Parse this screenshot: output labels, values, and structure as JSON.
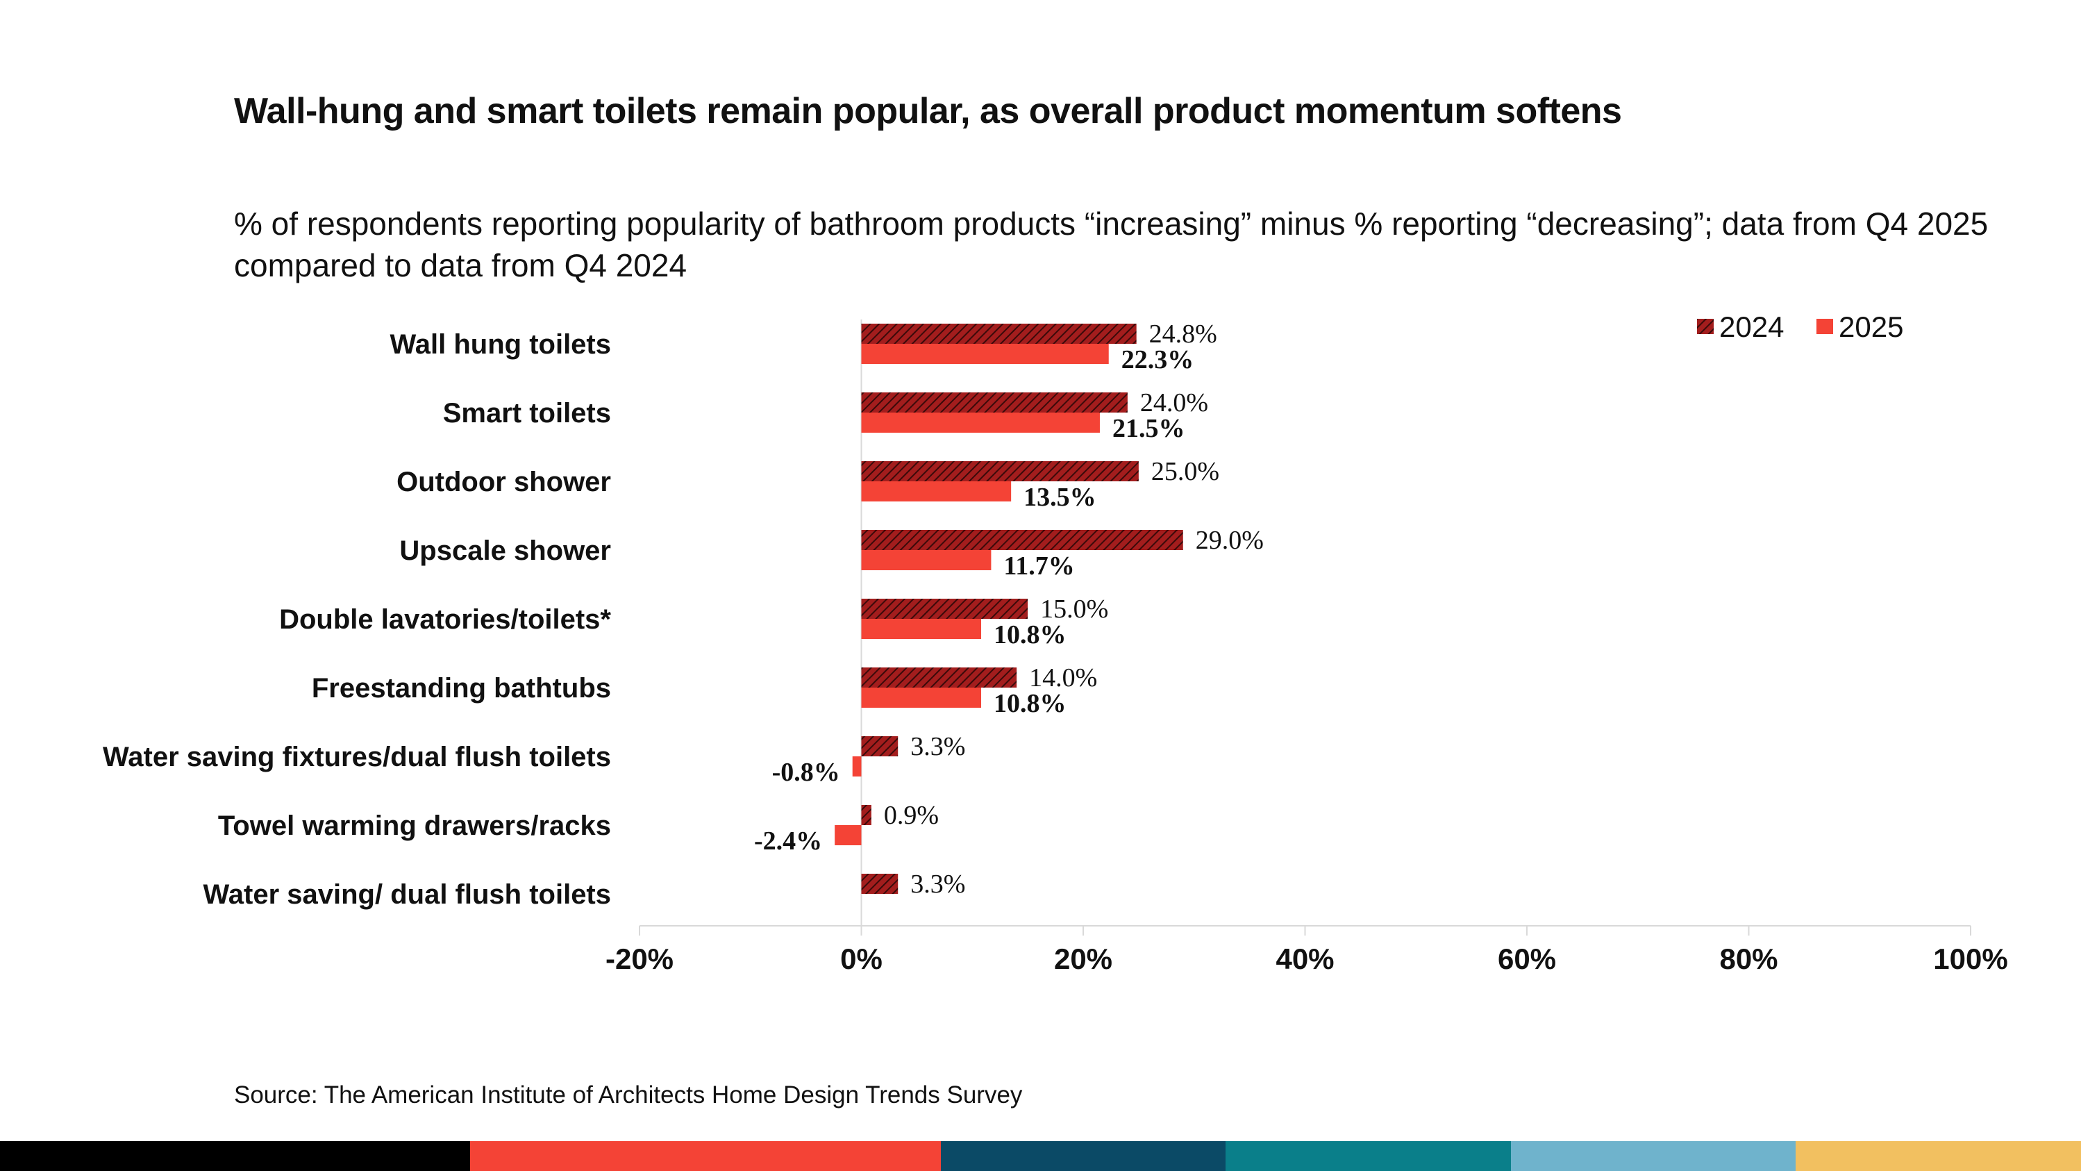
{
  "chart_data": {
    "type": "bar",
    "orientation": "horizontal",
    "title": "Wall-hung and smart toilets remain popular, as overall product momentum softens",
    "subtitle": "% of respondents reporting popularity of bathroom products “increasing” minus % reporting “decreasing”; data from Q4 2025 compared to data from Q4 2024",
    "categories": [
      "Wall hung toilets",
      "Smart toilets",
      "Outdoor shower",
      "Upscale shower",
      "Double lavatories/toilets*",
      "Freestanding bathtubs",
      "Water saving fixtures/dual flush toilets",
      "Towel warming drawers/racks",
      "Water saving/ dual flush toilets"
    ],
    "series": [
      {
        "name": "2024",
        "color": "#a31d1d",
        "pattern": "hatched",
        "values": [
          24.8,
          24.0,
          25.0,
          29.0,
          15.0,
          14.0,
          3.3,
          0.9,
          3.3
        ],
        "labels": [
          "24.8%",
          "24.0%",
          "25.0%",
          "29.0%",
          "15.0%",
          "14.0%",
          "3.3%",
          "0.9%",
          "3.3%"
        ]
      },
      {
        "name": "2025",
        "color": "#f44336",
        "pattern": "solid",
        "values": [
          22.3,
          21.5,
          13.5,
          11.7,
          10.8,
          10.8,
          -0.8,
          -2.4,
          null
        ],
        "labels": [
          "22.3%",
          "21.5%",
          "13.5%",
          "11.7%",
          "10.8%",
          "10.8%",
          "-0.8%",
          "-2.4%",
          null
        ]
      }
    ],
    "xlim": [
      -20,
      100
    ],
    "xticks": [
      "-20%",
      "0%",
      "20%",
      "40%",
      "60%",
      "80%",
      "100%"
    ],
    "xtick_values": [
      -20,
      0,
      20,
      40,
      60,
      80,
      100
    ],
    "legend_position": "top-right",
    "grid": false
  },
  "source": "Source: The American Institute of Architects Home Design Trends Survey",
  "footer_colors": [
    "#000000",
    "#f44336",
    "#0b4a66",
    "#0a7f8a",
    "#6fb3cc",
    "#f2c060"
  ]
}
